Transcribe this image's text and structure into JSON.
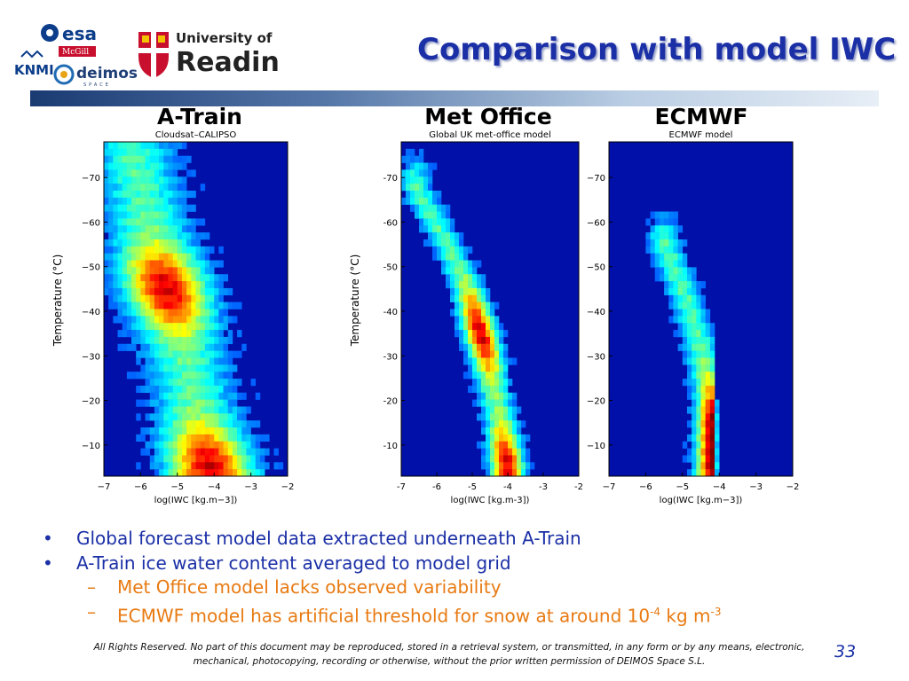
{
  "slide": {
    "title": "Comparison with model IWC",
    "page_number": "33",
    "footer": "All Rights Reserved. No part of this document may be reproduced, stored in a retrieval system, or transmitted, in any form or by any means, electronic, mechanical, photocopying, recording or otherwise, without the prior written permission of DEIMOS Space S.L."
  },
  "logos": {
    "esa": "esa",
    "mcgill": "McGill",
    "knmi": "KNMI",
    "deimos": "deimos",
    "deimos_sub": "SPACE",
    "reading_line1": "University of",
    "reading_line2": "Reading"
  },
  "panels": [
    {
      "heading": "A-Train"
    },
    {
      "heading": "Met Office"
    },
    {
      "heading": "ECMWF"
    }
  ],
  "bullets": [
    {
      "level": 1,
      "text": "Global forecast model data extracted underneath A-Train"
    },
    {
      "level": 1,
      "text": "A-Train ice water content averaged to model grid"
    },
    {
      "level": 2,
      "text": "Met Office model lacks observed variability"
    },
    {
      "level": 2,
      "text_before": "ECMWF model has artificial threshold for snow at around 10",
      "sup1": "-4",
      "text_mid": " kg m",
      "sup2": "-3"
    }
  ],
  "colors": {
    "title": "#1b2fa6",
    "bullet_level1": "#1b2fa6",
    "bullet_level2": "#e87a12",
    "plot_background": "#0010a8"
  },
  "chart_data": [
    {
      "type": "heatmap",
      "title": "Cloudsat–CALIPSO",
      "xlabel": "log(IWC [kg.m−3])",
      "ylabel": "Temperature (°C)",
      "xlim": [
        -7,
        -2
      ],
      "ylim": [
        -78,
        -3
      ],
      "xticks": [
        "−7",
        "−6",
        "−5",
        "−4",
        "−3",
        "−2"
      ],
      "yticks": [
        "−70",
        "−60",
        "−50",
        "−40",
        "−30",
        "−20",
        "−10"
      ],
      "ridge": [
        {
          "t": -75,
          "x": -6.2
        },
        {
          "t": -60,
          "x": -5.8
        },
        {
          "t": -45,
          "x": -5.3
        },
        {
          "t": -30,
          "x": -4.8
        },
        {
          "t": -15,
          "x": -4.4
        },
        {
          "t": -5,
          "x": -4.1
        }
      ],
      "spread": 0.75,
      "peak_temps": [
        -45,
        -5
      ]
    },
    {
      "type": "heatmap",
      "title": "Global UK met-office model",
      "xlabel": "log(IWC [kg.m-3])",
      "ylabel": "Temperature (°C)",
      "xlim": [
        -7,
        -2
      ],
      "ylim": [
        -78,
        -3
      ],
      "xticks": [
        "-7",
        "-6",
        "-5",
        "-4",
        "-3",
        "-2"
      ],
      "yticks": [
        "-70",
        "-60",
        "-50",
        "-40",
        "-30",
        "-20",
        "-10"
      ],
      "ridge": [
        {
          "t": -68,
          "x": -6.6
        },
        {
          "t": -55,
          "x": -5.7
        },
        {
          "t": -45,
          "x": -5.1
        },
        {
          "t": -30,
          "x": -4.6
        },
        {
          "t": -15,
          "x": -4.2
        },
        {
          "t": -5,
          "x": -4.0
        }
      ],
      "spread": 0.3,
      "peak_temps": [
        -35,
        -5
      ]
    },
    {
      "type": "heatmap",
      "title": "ECMWF model",
      "xlabel": "log(IWC [kg.m−3])",
      "ylabel": "",
      "xlim": [
        -7,
        -2
      ],
      "ylim": [
        -78,
        -3
      ],
      "xticks": [
        "−7",
        "−6",
        "−5",
        "−4",
        "−3",
        "−2"
      ],
      "yticks": [
        "−70",
        "−60",
        "−50",
        "−40",
        "−30",
        "−20",
        "−10"
      ],
      "ridge": [
        {
          "t": -55,
          "x": -5.5
        },
        {
          "t": -45,
          "x": -5.0
        },
        {
          "t": -35,
          "x": -4.6
        },
        {
          "t": -25,
          "x": -4.3
        },
        {
          "t": -20,
          "x": -4.15
        },
        {
          "t": -5,
          "x": -4.15
        }
      ],
      "spread": 0.3,
      "threshold": -4.15,
      "peak_temps": [
        -15,
        -5
      ]
    }
  ]
}
